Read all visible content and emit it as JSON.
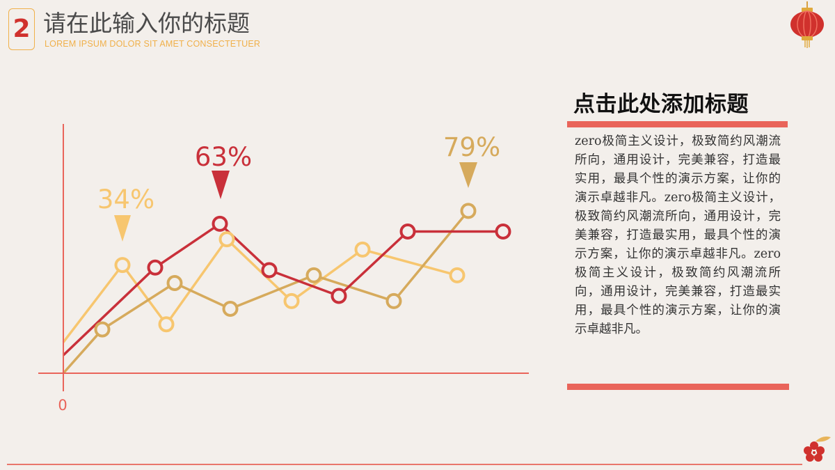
{
  "header": {
    "number": "2",
    "title": "请在此输入你的标题",
    "subtitle": "LOREM IPSUM DOLOR SIT AMET CONSECTETUER"
  },
  "panel": {
    "title": "点击此处添加标题",
    "body": "zero极简主义设计，极致简约风潮流所向，通用设计，完美兼容，打造最实用，最具个性的演示方案，让你的演示卓越非凡。zero极简主义设计，极致简约风潮流所向，通用设计，完美兼容，打造最实用，最具个性的演示方案，让你的演示卓越非凡。zero极简主义设计，极致简约风潮流所向，通用设计，完美兼容，打造最实用，最具个性的演示方案，让你的演示卓越非凡。"
  },
  "colors": {
    "red": "#c9303a",
    "yellow": "#f7c66f",
    "tan": "#d6aa5c",
    "axis": "#e9645a"
  },
  "chart_data": {
    "type": "line",
    "origin_label": "0",
    "x": [
      0,
      1,
      2,
      3,
      4,
      5,
      6,
      7,
      8,
      9
    ],
    "series": [
      {
        "color": "#f7c66f",
        "values": [
          12,
          42,
          19,
          52,
          28,
          48,
          38
        ],
        "x": [
          0,
          1,
          2,
          3,
          4,
          5,
          6
        ]
      },
      {
        "color": "#d6aa5c",
        "values": [
          0,
          17,
          35,
          25,
          38,
          28,
          63
        ],
        "x": [
          0,
          1,
          2,
          3,
          4,
          5,
          6
        ]
      },
      {
        "color": "#c9303a",
        "values": [
          7,
          41,
          58,
          40,
          30,
          55,
          55
        ],
        "x": [
          0,
          1,
          2,
          3,
          4,
          5,
          6
        ]
      }
    ],
    "callouts": [
      {
        "label": "34%",
        "color": "#f7c66f"
      },
      {
        "label": "63%",
        "color": "#c9303a"
      },
      {
        "label": "79%",
        "color": "#d6aa5c"
      }
    ]
  }
}
